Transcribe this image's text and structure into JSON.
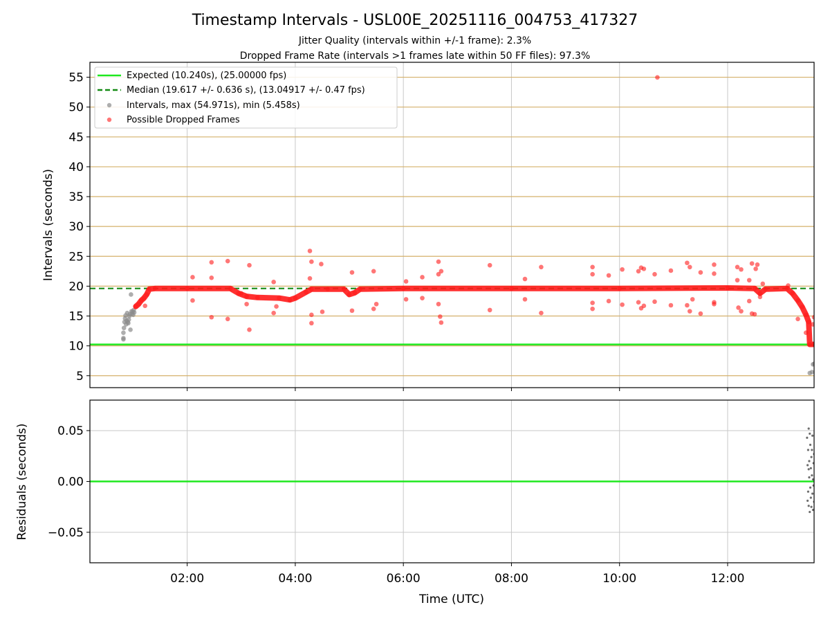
{
  "chart_data": [
    {
      "type": "scatter",
      "title": "Timestamp Intervals - USL00E_20251116_004753_417327",
      "subtitle_lines": [
        "Jitter Quality (intervals within +/-1 frame): 2.3%",
        "Dropped Frame Rate (intervals >1 frames late within 50 FF files): 97.3%"
      ],
      "ylabel": "Intervals (seconds)",
      "xlim_hours": [
        0.2,
        13.6
      ],
      "ylim": [
        3.0,
        57.5
      ],
      "yticks": [
        5,
        10,
        15,
        20,
        25,
        30,
        35,
        40,
        45,
        50,
        55
      ],
      "ytick_labels": [
        "5",
        "10",
        "15",
        "20",
        "25",
        "30",
        "35",
        "40",
        "45",
        "50",
        "55"
      ],
      "horizontal_gridlines_color": "#d4b06a",
      "vertical_grid": true,
      "legend_position": "top-left",
      "legend": [
        "Expected (10.240s), (25.00000 fps)",
        "Median (19.617 +/- 0.636 s), (13.04917 +/- 0.47 fps)",
        "Intervals, max (54.971s), min (5.458s)",
        "Possible Dropped Frames"
      ],
      "expected_line": 10.24,
      "median_line": 19.617,
      "colors": {
        "expected": "#1ee81e",
        "median": "#138a13",
        "intervals": "#8c8c8c",
        "dropped": "#ff1a1a"
      },
      "intervals_points": [
        {
          "x": 0.82,
          "y": 11.1
        },
        {
          "x": 0.82,
          "y": 11.3
        },
        {
          "x": 0.82,
          "y": 12.2
        },
        {
          "x": 0.83,
          "y": 13.0
        },
        {
          "x": 0.84,
          "y": 14.0
        },
        {
          "x": 0.85,
          "y": 14.6
        },
        {
          "x": 0.86,
          "y": 15.1
        },
        {
          "x": 0.87,
          "y": 13.6
        },
        {
          "x": 0.88,
          "y": 14.2
        },
        {
          "x": 0.89,
          "y": 15.5
        },
        {
          "x": 0.9,
          "y": 14.0
        },
        {
          "x": 0.91,
          "y": 13.8
        },
        {
          "x": 0.92,
          "y": 14.4
        },
        {
          "x": 0.93,
          "y": 15.0
        },
        {
          "x": 0.94,
          "y": 15.3
        },
        {
          "x": 0.95,
          "y": 12.7
        },
        {
          "x": 0.96,
          "y": 18.6
        },
        {
          "x": 0.97,
          "y": 15.8
        },
        {
          "x": 0.98,
          "y": 15.4
        },
        {
          "x": 0.99,
          "y": 15.7
        },
        {
          "x": 1.0,
          "y": 15.2
        },
        {
          "x": 1.01,
          "y": 16.0
        },
        {
          "x": 1.02,
          "y": 15.6
        },
        {
          "x": 13.52,
          "y": 5.45
        },
        {
          "x": 13.56,
          "y": 5.6
        },
        {
          "x": 13.58,
          "y": 6.9
        },
        {
          "x": 13.6,
          "y": 7.0
        }
      ],
      "dropped_outliers": [
        {
          "x": 1.22,
          "y": 16.7
        },
        {
          "x": 2.1,
          "y": 21.5
        },
        {
          "x": 2.1,
          "y": 17.6
        },
        {
          "x": 2.45,
          "y": 24.0
        },
        {
          "x": 2.45,
          "y": 21.4
        },
        {
          "x": 2.45,
          "y": 14.8
        },
        {
          "x": 2.75,
          "y": 24.2
        },
        {
          "x": 2.75,
          "y": 14.5
        },
        {
          "x": 3.0,
          "y": 18.8
        },
        {
          "x": 3.15,
          "y": 23.5
        },
        {
          "x": 3.15,
          "y": 12.7
        },
        {
          "x": 3.1,
          "y": 17.0
        },
        {
          "x": 3.6,
          "y": 20.7
        },
        {
          "x": 3.6,
          "y": 15.5
        },
        {
          "x": 3.65,
          "y": 16.6
        },
        {
          "x": 4.27,
          "y": 25.9
        },
        {
          "x": 4.27,
          "y": 21.3
        },
        {
          "x": 4.3,
          "y": 24.1
        },
        {
          "x": 4.3,
          "y": 15.2
        },
        {
          "x": 4.3,
          "y": 13.8
        },
        {
          "x": 4.48,
          "y": 23.7
        },
        {
          "x": 4.5,
          "y": 15.7
        },
        {
          "x": 5.05,
          "y": 22.3
        },
        {
          "x": 5.05,
          "y": 15.9
        },
        {
          "x": 5.45,
          "y": 22.5
        },
        {
          "x": 5.45,
          "y": 16.2
        },
        {
          "x": 5.5,
          "y": 17.0
        },
        {
          "x": 6.05,
          "y": 20.8
        },
        {
          "x": 6.05,
          "y": 17.8
        },
        {
          "x": 6.35,
          "y": 21.5
        },
        {
          "x": 6.35,
          "y": 18.0
        },
        {
          "x": 6.65,
          "y": 24.1
        },
        {
          "x": 6.65,
          "y": 22.0
        },
        {
          "x": 6.65,
          "y": 17.0
        },
        {
          "x": 6.68,
          "y": 14.9
        },
        {
          "x": 6.7,
          "y": 13.9
        },
        {
          "x": 6.7,
          "y": 22.5
        },
        {
          "x": 7.6,
          "y": 23.5
        },
        {
          "x": 7.6,
          "y": 16.0
        },
        {
          "x": 8.25,
          "y": 21.2
        },
        {
          "x": 8.25,
          "y": 17.8
        },
        {
          "x": 8.55,
          "y": 23.2
        },
        {
          "x": 8.55,
          "y": 15.5
        },
        {
          "x": 9.5,
          "y": 23.2
        },
        {
          "x": 9.5,
          "y": 22.0
        },
        {
          "x": 9.5,
          "y": 17.2
        },
        {
          "x": 9.5,
          "y": 16.2
        },
        {
          "x": 9.8,
          "y": 21.8
        },
        {
          "x": 9.8,
          "y": 17.5
        },
        {
          "x": 10.05,
          "y": 22.8
        },
        {
          "x": 10.05,
          "y": 16.9
        },
        {
          "x": 10.35,
          "y": 22.5
        },
        {
          "x": 10.35,
          "y": 17.3
        },
        {
          "x": 10.4,
          "y": 23.1
        },
        {
          "x": 10.4,
          "y": 16.3
        },
        {
          "x": 10.45,
          "y": 22.9
        },
        {
          "x": 10.45,
          "y": 16.7
        },
        {
          "x": 10.65,
          "y": 22.0
        },
        {
          "x": 10.65,
          "y": 17.4
        },
        {
          "x": 10.7,
          "y": 54.97
        },
        {
          "x": 10.95,
          "y": 22.6
        },
        {
          "x": 10.95,
          "y": 16.8
        },
        {
          "x": 11.25,
          "y": 23.9
        },
        {
          "x": 11.25,
          "y": 16.8
        },
        {
          "x": 11.3,
          "y": 23.2
        },
        {
          "x": 11.3,
          "y": 15.8
        },
        {
          "x": 11.35,
          "y": 17.8
        },
        {
          "x": 11.5,
          "y": 22.3
        },
        {
          "x": 11.5,
          "y": 15.4
        },
        {
          "x": 11.75,
          "y": 23.6
        },
        {
          "x": 11.75,
          "y": 22.1
        },
        {
          "x": 11.75,
          "y": 17.3
        },
        {
          "x": 11.75,
          "y": 17.0
        },
        {
          "x": 12.18,
          "y": 23.2
        },
        {
          "x": 12.18,
          "y": 21.0
        },
        {
          "x": 12.2,
          "y": 16.4
        },
        {
          "x": 12.25,
          "y": 22.8
        },
        {
          "x": 12.25,
          "y": 15.8
        },
        {
          "x": 12.4,
          "y": 21.0
        },
        {
          "x": 12.4,
          "y": 17.5
        },
        {
          "x": 12.45,
          "y": 23.8
        },
        {
          "x": 12.45,
          "y": 15.4
        },
        {
          "x": 12.5,
          "y": 15.3
        },
        {
          "x": 12.52,
          "y": 22.9
        },
        {
          "x": 12.55,
          "y": 23.6
        },
        {
          "x": 12.6,
          "y": 18.2
        },
        {
          "x": 12.65,
          "y": 20.4
        },
        {
          "x": 13.12,
          "y": 20.1
        },
        {
          "x": 13.3,
          "y": 14.5
        },
        {
          "x": 13.45,
          "y": 12.2
        },
        {
          "x": 13.58,
          "y": 13.6
        },
        {
          "x": 13.6,
          "y": 14.8
        }
      ],
      "dropped_trend": [
        {
          "x": 1.05,
          "y": 16.6
        },
        {
          "x": 1.1,
          "y": 17.0
        },
        {
          "x": 1.15,
          "y": 17.6
        },
        {
          "x": 1.2,
          "y": 18.0
        },
        {
          "x": 1.25,
          "y": 18.6
        },
        {
          "x": 1.3,
          "y": 19.5
        },
        {
          "x": 1.4,
          "y": 19.6
        },
        {
          "x": 2.0,
          "y": 19.6
        },
        {
          "x": 2.8,
          "y": 19.6
        },
        {
          "x": 2.95,
          "y": 18.8
        },
        {
          "x": 3.1,
          "y": 18.3
        },
        {
          "x": 3.3,
          "y": 18.1
        },
        {
          "x": 3.7,
          "y": 18.0
        },
        {
          "x": 3.9,
          "y": 17.7
        },
        {
          "x": 4.0,
          "y": 18.0
        },
        {
          "x": 4.2,
          "y": 19.0
        },
        {
          "x": 4.3,
          "y": 19.5
        },
        {
          "x": 4.6,
          "y": 19.5
        },
        {
          "x": 4.9,
          "y": 19.5
        },
        {
          "x": 5.0,
          "y": 18.6
        },
        {
          "x": 5.1,
          "y": 18.9
        },
        {
          "x": 5.2,
          "y": 19.5
        },
        {
          "x": 6.0,
          "y": 19.6
        },
        {
          "x": 8.0,
          "y": 19.6
        },
        {
          "x": 10.0,
          "y": 19.6
        },
        {
          "x": 12.0,
          "y": 19.7
        },
        {
          "x": 12.5,
          "y": 19.6
        },
        {
          "x": 12.6,
          "y": 18.8
        },
        {
          "x": 12.7,
          "y": 19.5
        },
        {
          "x": 13.1,
          "y": 19.6
        },
        {
          "x": 13.2,
          "y": 18.8
        },
        {
          "x": 13.3,
          "y": 17.6
        },
        {
          "x": 13.38,
          "y": 16.5
        },
        {
          "x": 13.45,
          "y": 15.2
        },
        {
          "x": 13.5,
          "y": 14.0
        },
        {
          "x": 13.52,
          "y": 10.25
        },
        {
          "x": 13.6,
          "y": 10.25
        }
      ]
    },
    {
      "type": "scatter",
      "xlabel": "Time (UTC)",
      "ylabel": "Residuals (seconds)",
      "xlim_hours": [
        0.2,
        13.6
      ],
      "ylim": [
        -0.08,
        0.08
      ],
      "yticks": [
        -0.05,
        0.0,
        0.05
      ],
      "ytick_labels": [
        "−0.05",
        "0.00",
        "0.05"
      ],
      "xticks_hours": [
        2,
        4,
        6,
        8,
        10,
        12
      ],
      "xtick_labels": [
        "02:00",
        "04:00",
        "06:00",
        "08:00",
        "10:00",
        "12:00"
      ],
      "zero_line": 0.0,
      "colors": {
        "zero": "#1ee81e",
        "residuals": "#6e6e6e"
      },
      "residuals": [
        {
          "x": 13.47,
          "y": 0.043
        },
        {
          "x": 13.48,
          "y": 0.016
        },
        {
          "x": 13.48,
          "y": -0.019
        },
        {
          "x": 13.49,
          "y": 0.031
        },
        {
          "x": 13.49,
          "y": -0.01
        },
        {
          "x": 13.5,
          "y": 0.052
        },
        {
          "x": 13.5,
          "y": 0.012
        },
        {
          "x": 13.5,
          "y": -0.024
        },
        {
          "x": 13.51,
          "y": 0.02
        },
        {
          "x": 13.51,
          "y": 0.004
        },
        {
          "x": 13.52,
          "y": -0.03
        },
        {
          "x": 13.52,
          "y": 0.047
        },
        {
          "x": 13.53,
          "y": -0.006
        },
        {
          "x": 13.53,
          "y": 0.036
        },
        {
          "x": 13.54,
          "y": -0.016
        },
        {
          "x": 13.54,
          "y": 0.013
        },
        {
          "x": 13.55,
          "y": 0.024
        },
        {
          "x": 13.55,
          "y": -0.025
        },
        {
          "x": 13.56,
          "y": 0.006
        },
        {
          "x": 13.56,
          "y": 0.031
        },
        {
          "x": 13.57,
          "y": -0.012
        },
        {
          "x": 13.57,
          "y": 0.045
        },
        {
          "x": 13.58,
          "y": 0.002
        },
        {
          "x": 13.58,
          "y": -0.028
        },
        {
          "x": 13.59,
          "y": 0.018
        },
        {
          "x": 13.59,
          "y": -0.004
        },
        {
          "x": 13.6,
          "y": 0.027
        },
        {
          "x": 13.6,
          "y": -0.02
        }
      ]
    }
  ]
}
